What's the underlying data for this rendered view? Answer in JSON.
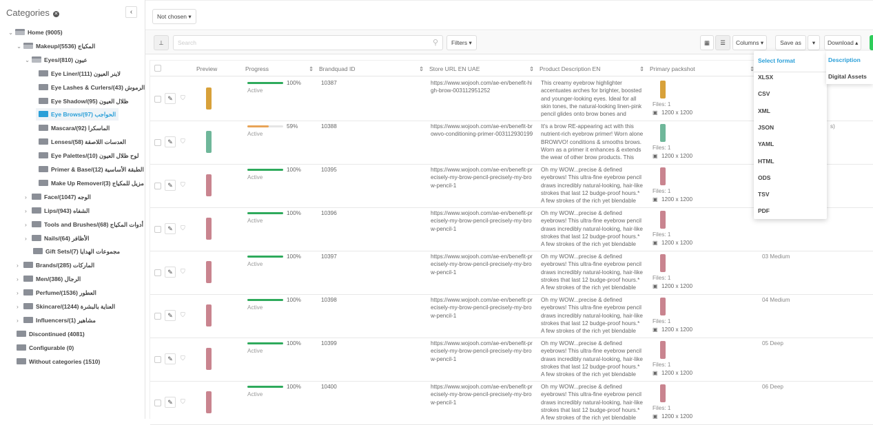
{
  "sidebar": {
    "title": "Categories",
    "tree": [
      {
        "label": "Home (9005)",
        "level": 0,
        "state": "open"
      },
      {
        "label": "Makeup/المكياج (5536)",
        "level": 1,
        "state": "open"
      },
      {
        "label": "Eyes/عيون (810)",
        "level": 2,
        "state": "open"
      },
      {
        "label": "Eye Liner/لاينر العيون (111)",
        "level": 3,
        "state": "leaf"
      },
      {
        "label": "Eye Lashes & Curlers/الرموش (43)",
        "level": 3,
        "state": "leaf"
      },
      {
        "label": "Eye Shadow/ظلال العيون (95)",
        "level": 3,
        "state": "leaf"
      },
      {
        "label": "Eye Brows/الحواجب (97)",
        "level": 3,
        "state": "leaf",
        "selected": true
      },
      {
        "label": "Mascara/الماسكرا (92)",
        "level": 3,
        "state": "leaf"
      },
      {
        "label": "Lenses/العدسات اللاصقة (58)",
        "level": 3,
        "state": "leaf"
      },
      {
        "label": "Eye Palettes/لوح ظلال العيون (10)",
        "level": 3,
        "state": "leaf"
      },
      {
        "label": "Primer & Base/الطبقة الأساسية (12)",
        "level": 3,
        "state": "leaf"
      },
      {
        "label": "Make Up Remover/مزيل للمكياج (3)",
        "level": 3,
        "state": "leaf"
      },
      {
        "label": "Face/الوجه (1047)",
        "level": 2,
        "state": "closed"
      },
      {
        "label": "Lips/الشفاه (943)",
        "level": 2,
        "state": "closed"
      },
      {
        "label": "Tools and Brushes/أدوات المكياج (68)",
        "level": 2,
        "state": "closed"
      },
      {
        "label": "Nails/الأظافر (64)",
        "level": 2,
        "state": "closed"
      },
      {
        "label": "Gift Sets/مجموعات الهدايا (7)",
        "level": 2,
        "state": "leaf"
      },
      {
        "label": "Brands/الماركات (285)",
        "level": 1,
        "state": "closed"
      },
      {
        "label": "Men/الرجال (386)",
        "level": 1,
        "state": "closed"
      },
      {
        "label": "Perfume/العطور (1536)",
        "level": 1,
        "state": "closed"
      },
      {
        "label": "Skincare/العناية بالبشرة (1244)",
        "level": 1,
        "state": "closed"
      },
      {
        "label": "Influencers/مشاهير (1)",
        "level": 1,
        "state": "closed"
      },
      {
        "label": "Discontinued (4081)",
        "level": 0,
        "state": "leaf"
      },
      {
        "label": "Configurable (0)",
        "level": 0,
        "state": "leaf"
      },
      {
        "label": "Without categories (1510)",
        "level": 0,
        "state": "leaf"
      }
    ]
  },
  "topbar": {
    "selector": "Not chosen"
  },
  "toolbar": {
    "search_placeholder": "Search",
    "filters": "Filters",
    "columns": "Columns",
    "save_as": "Save as",
    "download": "Download"
  },
  "columns": [
    "Preview",
    "Progress",
    "Brandquad ID",
    "Store URL EN UAE",
    "Product Description EN",
    "Primary packshot"
  ],
  "colors": {
    "accent": "#2a9fd8",
    "progress_full": "#2eaa5c",
    "progress_partial": "#e8a457",
    "green_button": "#2ecc5a"
  },
  "rows": [
    {
      "progress": 100,
      "progress_label": "100%",
      "status": "Active",
      "id": "10387",
      "url": "https://www.wojooh.com/ae-en/benefit-high-brow-003112951252",
      "desc": "This creamy eyebrow highlighter accentuates arches for brighter, boosted and younger-looking eyes. Ideal for all skin tones, the natural-looking linen-pink pencil glides onto brow bones and blends in like",
      "files": "Files: 1",
      "size": "1200 x 1200",
      "extra": "",
      "thumb": "#d8a13a"
    },
    {
      "progress": 59,
      "progress_label": "59%",
      "status": "Active",
      "id": "10388",
      "url": "https://www.wojooh.com/ae-en/benefit-browvo-conditioning-primer-003112930199",
      "desc": "It's a brow RE-appearing act with this nutrient-rich eyebrow primer! Worn alone BROWVO! conditions & smooths brows. Worn as a primer it enhances & extends the wear of other brow products. This",
      "files": "Files: 1",
      "size": "1200 x 1200",
      "extra": "s)",
      "thumb": "#6fb79a"
    },
    {
      "progress": 100,
      "progress_label": "100%",
      "status": "Active",
      "id": "10395",
      "url": "https://www.wojooh.com/ae-en/benefit-precisely-my-brow-pencil-precisely-my-brow-pencil-1",
      "desc": "Oh my WOW...precise & defined eyebrows! This ultra-fine eyebrow pencil draws incredibly natural-looking, hair-like strokes that last 12 budge-proof hours.* A few strokes of the rich yet blendable colour will",
      "files": "Files: 1",
      "size": "1200 x 1200",
      "extra": "",
      "thumb": "#c9848f"
    },
    {
      "progress": 100,
      "progress_label": "100%",
      "status": "Active",
      "id": "10396",
      "url": "https://www.wojooh.com/ae-en/benefit-precisely-my-brow-pencil-precisely-my-brow-pencil-1",
      "desc": "Oh my WOW...precise & defined eyebrows! This ultra-fine eyebrow pencil draws incredibly natural-looking, hair-like strokes that last 12 budge-proof hours.* A few strokes of the rich yet blendable colour will",
      "files": "Files: 1",
      "size": "1200 x 1200",
      "extra": "",
      "thumb": "#c9848f"
    },
    {
      "progress": 100,
      "progress_label": "100%",
      "status": "Active",
      "id": "10397",
      "url": "https://www.wojooh.com/ae-en/benefit-precisely-my-brow-pencil-precisely-my-brow-pencil-1",
      "desc": "Oh my WOW...precise & defined eyebrows! This ultra-fine eyebrow pencil draws incredibly natural-looking, hair-like strokes that last 12 budge-proof hours.* A few strokes of the rich yet blendable colour will",
      "files": "Files: 1",
      "size": "1200 x 1200",
      "extra": "03 Medium",
      "thumb": "#c9848f"
    },
    {
      "progress": 100,
      "progress_label": "100%",
      "status": "Active",
      "id": "10398",
      "url": "https://www.wojooh.com/ae-en/benefit-precisely-my-brow-pencil-precisely-my-brow-pencil-1",
      "desc": "Oh my WOW...precise & defined eyebrows! This ultra-fine eyebrow pencil draws incredibly natural-looking, hair-like strokes that last 12 budge-proof hours.* A few strokes of the rich yet blendable colour will",
      "files": "Files: 1",
      "size": "1200 x 1200",
      "extra": "04 Medium",
      "thumb": "#c9848f"
    },
    {
      "progress": 100,
      "progress_label": "100%",
      "status": "Active",
      "id": "10399",
      "url": "https://www.wojooh.com/ae-en/benefit-precisely-my-brow-pencil-precisely-my-brow-pencil-1",
      "desc": "Oh my WOW...precise & defined eyebrows! This ultra-fine eyebrow pencil draws incredibly natural-looking, hair-like strokes that last 12 budge-proof hours.* A few strokes of the rich yet blendable colour will",
      "files": "Files: 1",
      "size": "1200 x 1200",
      "extra": "05 Deep",
      "thumb": "#c9848f"
    },
    {
      "progress": 100,
      "progress_label": "100%",
      "status": "Active",
      "id": "10400",
      "url": "https://www.wojooh.com/ae-en/benefit-precisely-my-brow-pencil-precisely-my-brow-pencil-1",
      "desc": "Oh my WOW...precise & defined eyebrows! This ultra-fine eyebrow pencil draws incredibly natural-looking, hair-like strokes that last 12 budge-proof hours.* A few strokes of the rich yet blendable colour will",
      "files": "Files: 1",
      "size": "1200 x 1200",
      "extra": "06 Deep",
      "thumb": "#c9848f"
    }
  ],
  "format_menu": {
    "header": "Select format",
    "items": [
      "XLSX",
      "CSV",
      "XML",
      "JSON",
      "YAML",
      "HTML",
      "ODS",
      "TSV",
      "PDF"
    ]
  },
  "download_menu": {
    "items": [
      "Description",
      "Digital Assets"
    ]
  }
}
